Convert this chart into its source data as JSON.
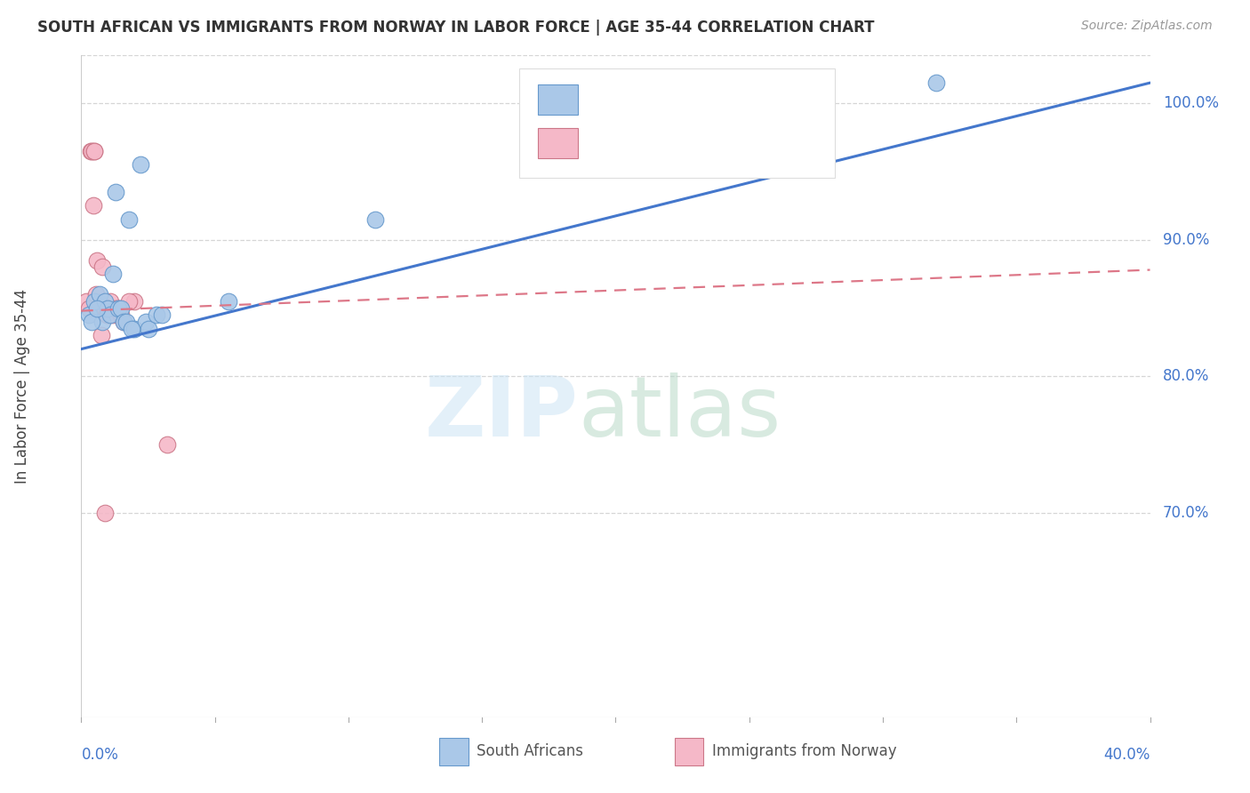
{
  "title": "SOUTH AFRICAN VS IMMIGRANTS FROM NORWAY IN LABOR FORCE | AGE 35-44 CORRELATION CHART",
  "source": "Source: ZipAtlas.com",
  "ylabel": "In Labor Force | Age 35-44",
  "xlim": [
    0.0,
    40.0
  ],
  "ylim": [
    55.0,
    103.5
  ],
  "yticks": [
    70.0,
    80.0,
    90.0,
    100.0
  ],
  "ytick_labels": [
    "70.0%",
    "80.0%",
    "90.0%",
    "100.0%"
  ],
  "legend_label1": "South Africans",
  "legend_label2": "Immigrants from Norway",
  "blue_color": "#aac8e8",
  "blue_edge_color": "#6699cc",
  "pink_color": "#f5b8c8",
  "pink_edge_color": "#cc7788",
  "blue_line_color": "#4477cc",
  "pink_line_color": "#dd7788",
  "blue_scatter_x": [
    0.3,
    0.5,
    0.7,
    0.8,
    0.9,
    1.0,
    1.1,
    1.3,
    1.4,
    1.5,
    1.6,
    1.7,
    1.8,
    2.0,
    2.2,
    2.4,
    2.5,
    2.8,
    3.0,
    0.4,
    0.6,
    1.2,
    1.9,
    5.5,
    11.0,
    32.0
  ],
  "blue_scatter_y": [
    84.5,
    85.5,
    86.0,
    84.0,
    85.5,
    85.0,
    84.5,
    93.5,
    85.0,
    85.0,
    84.0,
    84.0,
    91.5,
    83.5,
    95.5,
    84.0,
    83.5,
    84.5,
    84.5,
    84.0,
    85.0,
    87.5,
    83.5,
    85.5,
    91.5,
    101.5
  ],
  "pink_scatter_x": [
    0.2,
    0.3,
    0.35,
    0.4,
    0.5,
    0.5,
    0.6,
    0.6,
    0.7,
    0.8,
    0.9,
    0.95,
    1.0,
    1.0,
    1.1,
    1.2,
    1.3,
    1.4,
    1.5,
    1.6,
    2.0,
    0.45,
    0.55,
    0.75,
    1.8,
    3.2,
    0.9
  ],
  "pink_scatter_y": [
    85.5,
    85.0,
    96.5,
    96.5,
    96.5,
    96.5,
    88.5,
    85.5,
    85.0,
    88.0,
    85.0,
    84.5,
    84.5,
    85.0,
    85.5,
    84.5,
    85.0,
    85.0,
    84.5,
    84.0,
    85.5,
    92.5,
    86.0,
    83.0,
    85.5,
    75.0,
    70.0
  ],
  "blue_trend_x": [
    0.0,
    40.0
  ],
  "blue_trend_y": [
    82.0,
    101.5
  ],
  "pink_trend_x": [
    0.0,
    40.0
  ],
  "pink_trend_y": [
    84.8,
    87.8
  ],
  "background_color": "#ffffff",
  "grid_color": "#cccccc",
  "top_grid_y": 103.5
}
